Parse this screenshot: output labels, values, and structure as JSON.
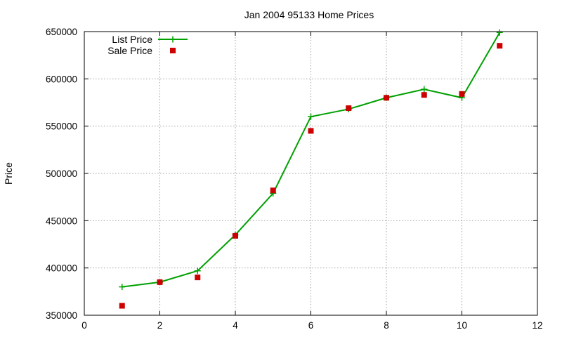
{
  "chart_data": {
    "type": "line",
    "title": "Jan 2004 95133 Home Prices",
    "xlabel": "",
    "ylabel": "Price",
    "xlim": [
      0,
      12
    ],
    "ylim": [
      350000,
      650000
    ],
    "x_ticks": [
      "0",
      "2",
      "4",
      "6",
      "8",
      "10",
      "12"
    ],
    "y_ticks": [
      "350000",
      "400000",
      "450000",
      "500000",
      "550000",
      "600000",
      "650000"
    ],
    "grid": true,
    "legend_position": "top-left",
    "series": [
      {
        "name": "List Price",
        "style": "line-with-plus-markers",
        "color": "#00a000",
        "x": [
          1,
          2,
          3,
          4,
          5,
          6,
          7,
          8,
          9,
          10,
          11
        ],
        "values": [
          380000,
          385000,
          397000,
          435000,
          479000,
          560000,
          568000,
          580000,
          589000,
          580000,
          649000
        ]
      },
      {
        "name": "Sale Price",
        "style": "square-markers",
        "color": "#cc0000",
        "x": [
          1,
          2,
          3,
          4,
          5,
          6,
          7,
          8,
          9,
          10,
          11
        ],
        "values": [
          360000,
          385000,
          390000,
          434000,
          482000,
          545000,
          569000,
          580000,
          583000,
          584000,
          635000
        ]
      }
    ]
  }
}
